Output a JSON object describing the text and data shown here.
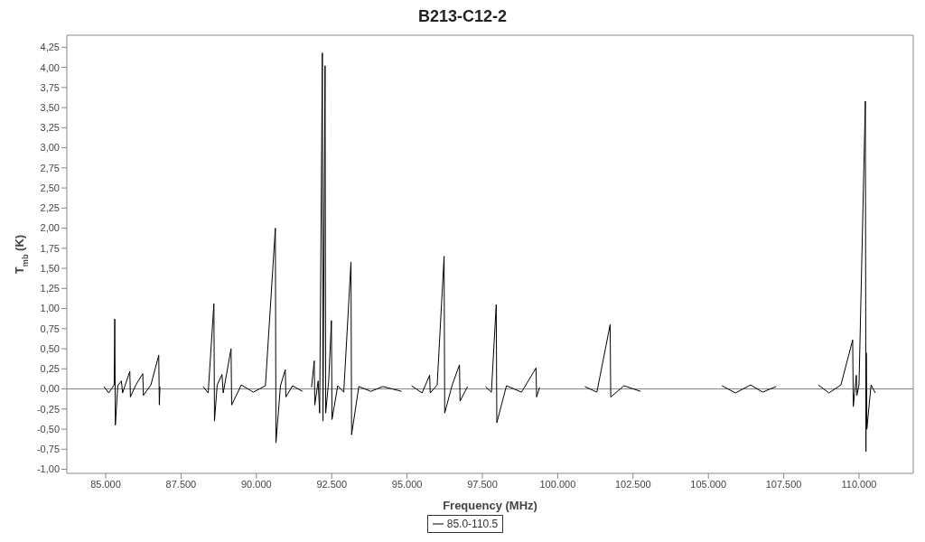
{
  "chart_data": {
    "type": "line",
    "title": "B213-C12-2",
    "xlabel": "Frequency (MHz)",
    "ylabel": "T$_{mb}$ (K)",
    "x": [
      84940,
      85100,
      85280,
      85300,
      85320,
      85400,
      85520,
      85560,
      85800,
      85820,
      86000,
      86230,
      86250,
      86500,
      86760,
      86780,
      86800,
      87500,
      88230,
      88400,
      88590,
      88610,
      88700,
      88860,
      88900,
      89160,
      89180,
      89500,
      89900,
      90300,
      90630,
      90650,
      90800,
      90960,
      90980,
      91200,
      91530,
      91700,
      91830,
      91920,
      91940,
      92050,
      92100,
      92190,
      92210,
      92280,
      92300,
      92400,
      92490,
      92510,
      92700,
      92900,
      93140,
      93160,
      93400,
      93800,
      94200,
      94820,
      95000,
      95150,
      95500,
      95750,
      95770,
      96000,
      96230,
      96250,
      96500,
      96740,
      96760,
      97010,
      97300,
      97600,
      97800,
      97960,
      97980,
      98300,
      98800,
      99280,
      99300,
      99400,
      100000,
      100900,
      101300,
      101740,
      101760,
      102200,
      102750,
      104000,
      105450,
      105900,
      106400,
      106800,
      107250,
      108000,
      108650,
      109000,
      109400,
      109790,
      109810,
      109910,
      109930,
      110000,
      110210,
      110230,
      110240,
      110260,
      110400,
      110540
    ],
    "series": [
      {
        "name": "85.0-110.5",
        "color": "#000000",
        "values": [
          0.03,
          -0.05,
          0.05,
          0.87,
          -0.45,
          0.04,
          0.1,
          -0.05,
          0.22,
          -0.1,
          0.05,
          0.19,
          -0.08,
          0.05,
          0.42,
          -0.2,
          0.03,
          null,
          0.03,
          -0.05,
          1.06,
          -0.4,
          0.05,
          0.18,
          -0.05,
          0.5,
          -0.2,
          0.05,
          -0.04,
          0.04,
          2.0,
          -0.67,
          0.04,
          0.24,
          -0.1,
          0.04,
          -0.03,
          null,
          0.02,
          0.35,
          -0.2,
          0.1,
          -0.3,
          4.18,
          -0.4,
          4.02,
          -0.3,
          0.1,
          0.85,
          -0.38,
          0.04,
          -0.04,
          1.58,
          -0.57,
          0.03,
          -0.03,
          0.03,
          -0.03,
          null,
          0.04,
          -0.05,
          0.17,
          -0.05,
          0.05,
          1.65,
          -0.3,
          0.05,
          0.3,
          -0.15,
          0.03,
          null,
          0.03,
          -0.04,
          1.05,
          -0.42,
          0.04,
          -0.04,
          0.26,
          -0.1,
          0.02,
          null,
          0.03,
          -0.04,
          0.8,
          -0.1,
          0.04,
          -0.03,
          null,
          0.04,
          -0.05,
          0.05,
          -0.04,
          0.03,
          null,
          0.05,
          -0.05,
          0.05,
          0.61,
          -0.22,
          0.17,
          -0.08,
          0.05,
          3.58,
          -0.78,
          0.45,
          -0.5,
          0.05,
          -0.05
        ]
      }
    ],
    "xlim": [
      83710,
      111800
    ],
    "ylim": [
      -1.05,
      4.4
    ],
    "xticks": [
      {
        "value": 85000,
        "label": "85.000"
      },
      {
        "value": 87500,
        "label": "87.500"
      },
      {
        "value": 90000,
        "label": "90.000"
      },
      {
        "value": 92500,
        "label": "92.500"
      },
      {
        "value": 95000,
        "label": "95.000"
      },
      {
        "value": 97500,
        "label": "97.500"
      },
      {
        "value": 100000,
        "label": "100.000"
      },
      {
        "value": 102500,
        "label": "102.500"
      },
      {
        "value": 105000,
        "label": "105.000"
      },
      {
        "value": 107500,
        "label": "107.500"
      },
      {
        "value": 110000,
        "label": "110.000"
      }
    ],
    "yticks": [
      {
        "value": -1,
        "label": "-1,00"
      },
      {
        "value": -0.75,
        "label": "-0,75"
      },
      {
        "value": -0.5,
        "label": "-0,50"
      },
      {
        "value": -0.25,
        "label": "-0,25"
      },
      {
        "value": 0,
        "label": "0,00"
      },
      {
        "value": 0.25,
        "label": "0,25"
      },
      {
        "value": 0.5,
        "label": "0,50"
      },
      {
        "value": 0.75,
        "label": "0,75"
      },
      {
        "value": 1,
        "label": "1,00"
      },
      {
        "value": 1.25,
        "label": "1,25"
      },
      {
        "value": 1.5,
        "label": "1,50"
      },
      {
        "value": 1.75,
        "label": "1,75"
      },
      {
        "value": 2,
        "label": "2,00"
      },
      {
        "value": 2.25,
        "label": "2,25"
      },
      {
        "value": 2.5,
        "label": "2,50"
      },
      {
        "value": 2.75,
        "label": "2,75"
      },
      {
        "value": 3,
        "label": "3,00"
      },
      {
        "value": 3.25,
        "label": "3,25"
      },
      {
        "value": 3.5,
        "label": "3,50"
      },
      {
        "value": 3.75,
        "label": "3,75"
      },
      {
        "value": 4,
        "label": "4,00"
      },
      {
        "value": 4.25,
        "label": "4,25"
      }
    ],
    "ref_lines": [
      {
        "axis": "y",
        "value": 0,
        "color": "#808080"
      }
    ],
    "legend": "bottom",
    "marker": "none",
    "line_style": "solid"
  }
}
